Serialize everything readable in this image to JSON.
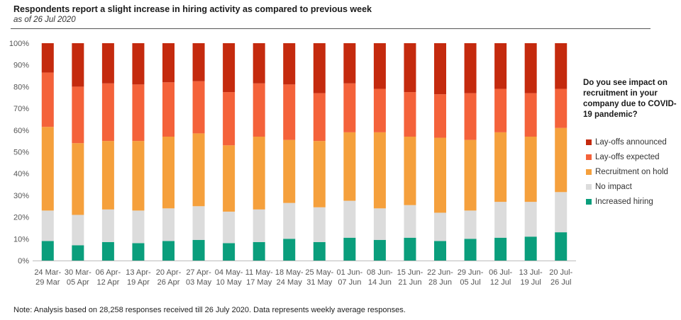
{
  "title": "Respondents report a slight increase in  hiring activity as compared to previous week",
  "subtitle": "as of 26 Jul 2020",
  "note": "Note: Analysis based on 28,258 responses received till 26 July 2020. Data represents weekly average responses.",
  "legend_question": "Do you see impact on recruitment in your company due to COVID-19 pandemic?",
  "chart_data": {
    "type": "bar",
    "stacked": true,
    "percent": true,
    "categories": [
      [
        "24 Mar-",
        "29 Mar"
      ],
      [
        "30 Mar-",
        "05 Apr"
      ],
      [
        "06 Apr-",
        "12 Apr"
      ],
      [
        "13 Apr-",
        "19 Apr"
      ],
      [
        "20 Apr-",
        "26 Apr"
      ],
      [
        "27 Apr-",
        "03 May"
      ],
      [
        "04 May-",
        "10 May"
      ],
      [
        "11 May-",
        "17 May"
      ],
      [
        "18 May-",
        "24 May"
      ],
      [
        "25 May-",
        "31 May"
      ],
      [
        "01 Jun-",
        "07 Jun"
      ],
      [
        "08 Jun-",
        "14 Jun"
      ],
      [
        "15 Jun-",
        "21 Jun"
      ],
      [
        "22 Jun-",
        "28 Jun"
      ],
      [
        "29 Jun-",
        "05 Jul"
      ],
      [
        "06 Jul-",
        "12 Jul"
      ],
      [
        "13 Jul-",
        "19 Jul"
      ],
      [
        "20 Jul-",
        "26 Jul"
      ]
    ],
    "ylim": [
      0,
      100
    ],
    "yticks": [
      "0%",
      "10%",
      "20%",
      "30%",
      "40%",
      "50%",
      "60%",
      "70%",
      "80%",
      "90%",
      "100%"
    ],
    "series": [
      {
        "name": "Increased hiring",
        "color": "#0a9e7c",
        "values": [
          9,
          7,
          8.5,
          8,
          9,
          9.5,
          8,
          8.5,
          10,
          8.5,
          10.5,
          9.5,
          10.5,
          9,
          10,
          10.5,
          11,
          13
        ]
      },
      {
        "name": "No impact",
        "color": "#dcdcdc",
        "values": [
          14,
          14,
          15,
          15,
          15,
          15.5,
          14.5,
          15,
          16.5,
          16,
          17,
          14.5,
          15,
          13,
          13,
          16.5,
          16,
          18.5
        ]
      },
      {
        "name": "Recruitment on hold",
        "color": "#f5a03c",
        "values": [
          38.5,
          33,
          31.5,
          32,
          33,
          33.5,
          30.5,
          33.5,
          29,
          30.5,
          31.5,
          35,
          31.5,
          34.5,
          32.5,
          32,
          30,
          29.5
        ]
      },
      {
        "name": "Lay-offs expected",
        "color": "#f4623a",
        "values": [
          25,
          26,
          26.5,
          26,
          25,
          24,
          24.5,
          24.5,
          25.5,
          22,
          22.5,
          20,
          20.5,
          20,
          21.5,
          20,
          20,
          18
        ]
      },
      {
        "name": "Lay-offs announced",
        "color": "#c42a0e",
        "values": [
          13.5,
          20,
          18.5,
          19,
          18,
          17.5,
          22.5,
          18.5,
          19,
          23,
          18.5,
          21,
          22.5,
          23.5,
          23,
          21,
          23,
          21
        ]
      }
    ],
    "legend_order": [
      "Lay-offs announced",
      "Lay-offs expected",
      "Recruitment on hold",
      "No impact",
      "Increased hiring"
    ],
    "legend_position": "right",
    "grid": false
  }
}
